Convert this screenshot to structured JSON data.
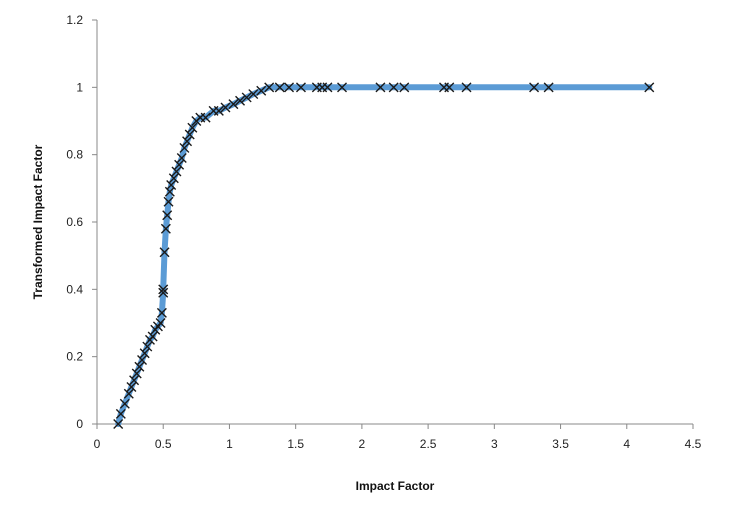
{
  "chart_data": {
    "type": "line",
    "title": "",
    "xlabel": "Impact Factor",
    "ylabel": "Transformed Impact Factor",
    "xlim": [
      0,
      4.5
    ],
    "ylim": [
      0,
      1.2
    ],
    "x_ticks": [
      "0",
      "0.5",
      "1",
      "1.5",
      "2",
      "2.5",
      "3",
      "3.5",
      "4",
      "4.5"
    ],
    "y_ticks": [
      "0",
      "0.2",
      "0.4",
      "0.6",
      "0.8",
      "1",
      "1.2"
    ],
    "grid": false,
    "legend": "none",
    "line_color": "#5b9bd5",
    "marker": "x",
    "marker_color": "#1a1a1a",
    "series": [
      {
        "points": [
          [
            0.16,
            0.0
          ],
          [
            0.18,
            0.03
          ],
          [
            0.21,
            0.06
          ],
          [
            0.24,
            0.09
          ],
          [
            0.26,
            0.11
          ],
          [
            0.28,
            0.13
          ],
          [
            0.3,
            0.15
          ],
          [
            0.32,
            0.17
          ],
          [
            0.34,
            0.19
          ],
          [
            0.36,
            0.21
          ],
          [
            0.38,
            0.23
          ],
          [
            0.4,
            0.25
          ],
          [
            0.42,
            0.26
          ],
          [
            0.44,
            0.28
          ],
          [
            0.46,
            0.29
          ],
          [
            0.48,
            0.3
          ],
          [
            0.49,
            0.33
          ],
          [
            0.5,
            0.39
          ],
          [
            0.5,
            0.4
          ],
          [
            0.51,
            0.51
          ],
          [
            0.52,
            0.58
          ],
          [
            0.53,
            0.62
          ],
          [
            0.54,
            0.66
          ],
          [
            0.55,
            0.69
          ],
          [
            0.56,
            0.71
          ],
          [
            0.58,
            0.73
          ],
          [
            0.6,
            0.75
          ],
          [
            0.62,
            0.77
          ],
          [
            0.64,
            0.79
          ],
          [
            0.66,
            0.82
          ],
          [
            0.68,
            0.84
          ],
          [
            0.7,
            0.86
          ],
          [
            0.72,
            0.88
          ],
          [
            0.75,
            0.9
          ],
          [
            0.78,
            0.91
          ],
          [
            0.82,
            0.91
          ],
          [
            0.88,
            0.93
          ],
          [
            0.92,
            0.93
          ],
          [
            0.97,
            0.94
          ],
          [
            1.03,
            0.95
          ],
          [
            1.08,
            0.96
          ],
          [
            1.13,
            0.97
          ],
          [
            1.18,
            0.98
          ],
          [
            1.24,
            0.99
          ],
          [
            1.3,
            1.0
          ],
          [
            1.38,
            1.0
          ],
          [
            1.45,
            1.0
          ],
          [
            1.54,
            1.0
          ],
          [
            1.66,
            1.0
          ],
          [
            1.7,
            1.0
          ],
          [
            1.74,
            1.0
          ],
          [
            1.85,
            1.0
          ],
          [
            2.14,
            1.0
          ],
          [
            2.24,
            1.0
          ],
          [
            2.32,
            1.0
          ],
          [
            2.62,
            1.0
          ],
          [
            2.66,
            1.0
          ],
          [
            2.79,
            1.0
          ],
          [
            3.3,
            1.0
          ],
          [
            3.41,
            1.0
          ],
          [
            4.17,
            1.0
          ]
        ]
      }
    ]
  }
}
